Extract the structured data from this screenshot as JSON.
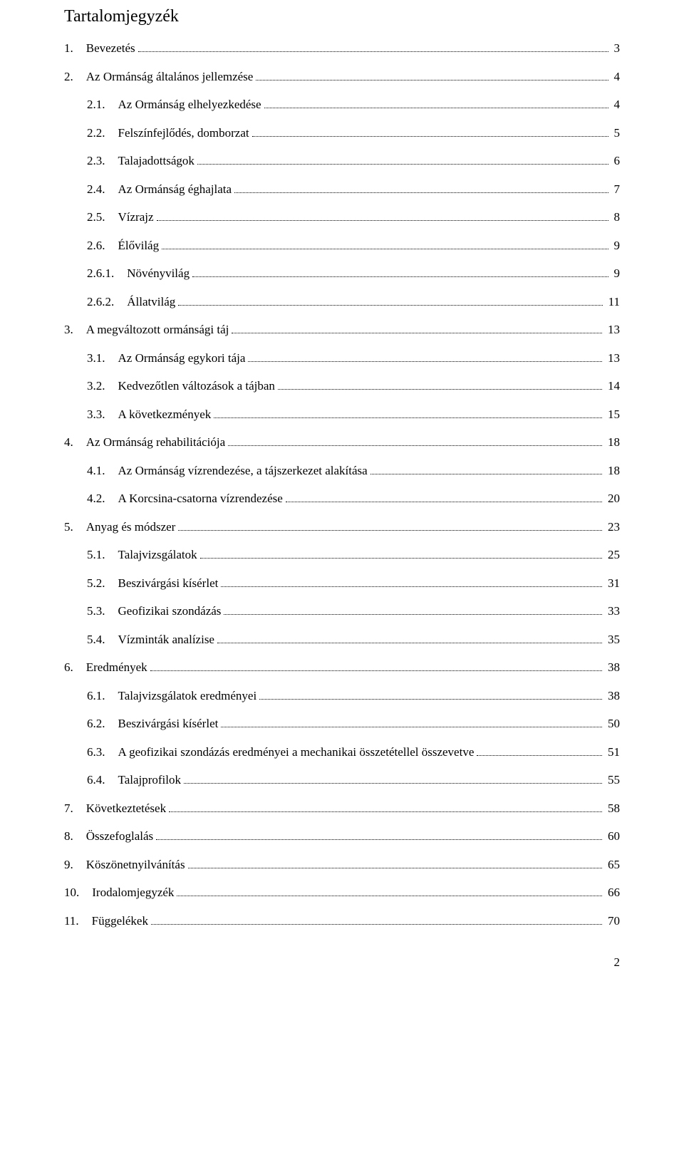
{
  "title": "Tartalomjegyzék",
  "page_number": "2",
  "entries": [
    {
      "level": 1,
      "num": "1.",
      "label": "Bevezetés",
      "page": "3"
    },
    {
      "level": 1,
      "num": "2.",
      "label": "Az Ormánság általános jellemzése",
      "page": "4"
    },
    {
      "level": 2,
      "num": "2.1.",
      "label": "Az Ormánság elhelyezkedése",
      "page": "4"
    },
    {
      "level": 2,
      "num": "2.2.",
      "label": "Felszínfejlődés, domborzat",
      "page": "5"
    },
    {
      "level": 2,
      "num": "2.3.",
      "label": "Talajadottságok",
      "page": "6"
    },
    {
      "level": 2,
      "num": "2.4.",
      "label": "Az Ormánság éghajlata",
      "page": "7"
    },
    {
      "level": 2,
      "num": "2.5.",
      "label": "Vízrajz",
      "page": "8"
    },
    {
      "level": 2,
      "num": "2.6.",
      "label": "Élővilág",
      "page": "9"
    },
    {
      "level": 2,
      "num": "2.6.1.",
      "label": "Növényvilág",
      "page": "9"
    },
    {
      "level": 2,
      "num": "2.6.2.",
      "label": "Állatvilág",
      "page": "11"
    },
    {
      "level": 1,
      "num": "3.",
      "label": "A megváltozott ormánsági táj",
      "page": "13"
    },
    {
      "level": 2,
      "num": "3.1.",
      "label": "Az Ormánság egykori tája",
      "page": "13"
    },
    {
      "level": 2,
      "num": "3.2.",
      "label": "Kedvezőtlen változások a tájban",
      "page": "14"
    },
    {
      "level": 2,
      "num": "3.3.",
      "label": "A következmények",
      "page": "15"
    },
    {
      "level": 1,
      "num": "4.",
      "label": "Az Ormánság rehabilitációja",
      "page": "18"
    },
    {
      "level": 2,
      "num": "4.1.",
      "label": "Az Ormánság vízrendezése, a tájszerkezet alakítása",
      "page": "18"
    },
    {
      "level": 2,
      "num": "4.2.",
      "label": "A Korcsina-csatorna vízrendezése",
      "page": "20"
    },
    {
      "level": 1,
      "num": "5.",
      "label": "Anyag és módszer",
      "page": "23"
    },
    {
      "level": 2,
      "num": "5.1.",
      "label": "Talajvizsgálatok",
      "page": "25"
    },
    {
      "level": 2,
      "num": "5.2.",
      "label": "Beszivárgási kísérlet",
      "page": "31"
    },
    {
      "level": 2,
      "num": "5.3.",
      "label": "Geofizikai szondázás",
      "page": "33"
    },
    {
      "level": 2,
      "num": "5.4.",
      "label": "Vízminták analízise",
      "page": "35"
    },
    {
      "level": 1,
      "num": "6.",
      "label": "Eredmények",
      "page": "38"
    },
    {
      "level": 2,
      "num": "6.1.",
      "label": "Talajvizsgálatok eredményei",
      "page": "38"
    },
    {
      "level": 2,
      "num": "6.2.",
      "label": "Beszivárgási kísérlet",
      "page": "50"
    },
    {
      "level": 2,
      "num": "6.3.",
      "label": "A geofizikai szondázás eredményei a mechanikai összetétellel összevetve",
      "page": "51"
    },
    {
      "level": 2,
      "num": "6.4.",
      "label": "Talajprofilok",
      "page": "55"
    },
    {
      "level": 1,
      "num": "7.",
      "label": "Következtetések",
      "page": "58"
    },
    {
      "level": 1,
      "num": "8.",
      "label": "Összefoglalás",
      "page": "60"
    },
    {
      "level": 1,
      "num": "9.",
      "label": "Köszönetnyilvánítás",
      "page": "65"
    },
    {
      "level": 1,
      "num": "10.",
      "label": "Irodalomjegyzék",
      "page": "66"
    },
    {
      "level": 1,
      "num": "11.",
      "label": "Függelékek",
      "page": "70"
    }
  ]
}
